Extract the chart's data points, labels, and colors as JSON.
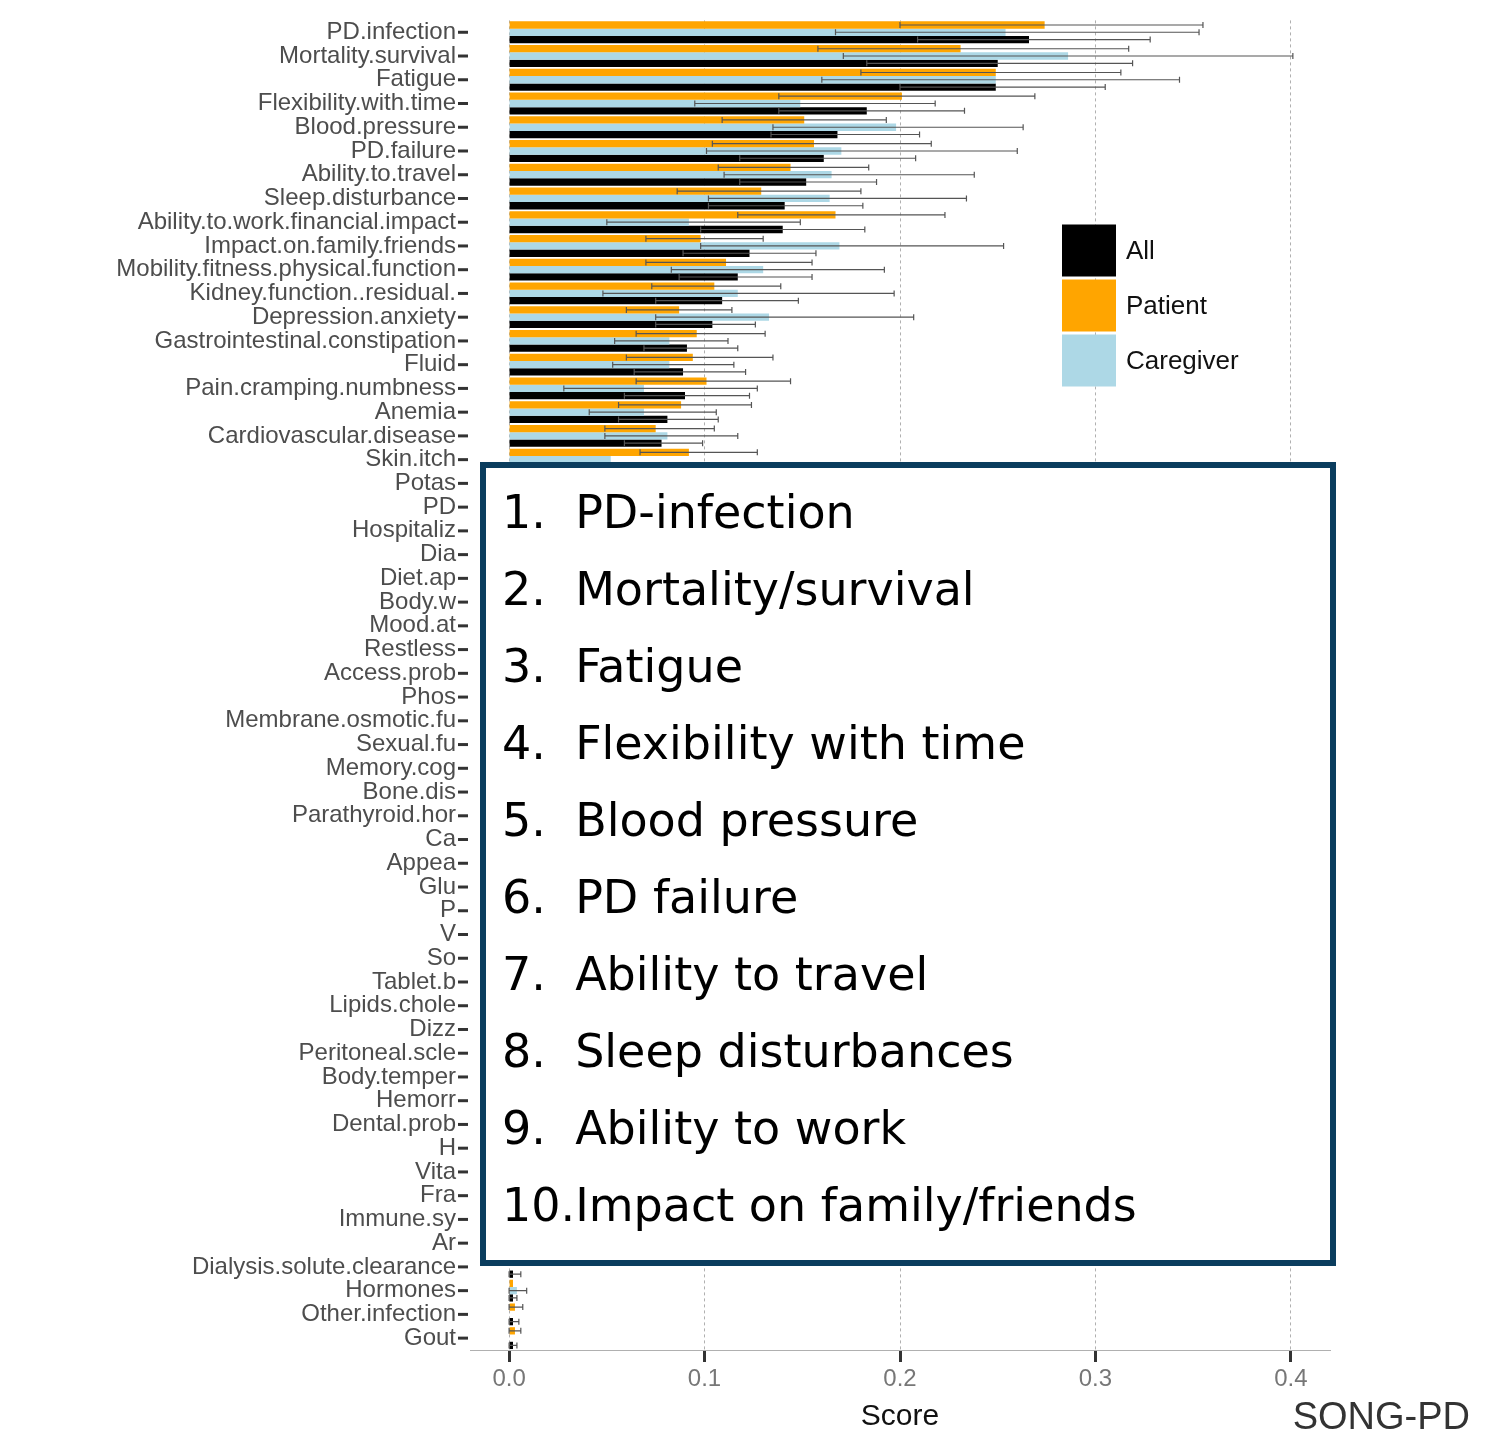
{
  "chart_data": {
    "type": "bar",
    "orientation": "horizontal",
    "xlabel": "Score",
    "categories": [
      "PD.infection",
      "Mortality.survival",
      "Fatigue",
      "Flexibility.with.time",
      "Blood.pressure",
      "PD.failure",
      "Ability.to.travel",
      "Sleep.disturbance",
      "Ability.to.work.financial.impact",
      "Impact.on.family.friends",
      "Mobility.fitness.physical.function",
      "Kidney.function..residual.",
      "Depression.anxiety",
      "Gastrointestinal.constipation",
      "Fluid",
      "Pain.cramping.numbness",
      "Anemia",
      "Cardiovascular.disease",
      "Skin.itch",
      "Potas",
      "PD",
      "Hospitaliz",
      "Dia",
      "Diet.ap",
      "Body.w",
      "Mood.at",
      "Restless",
      "Access.prob",
      "Phos",
      "Membrane.osmotic.fu",
      "Sexual.fu",
      "Memory.cog",
      "Bone.dis",
      "Parathyroid.hor",
      "Ca",
      "Appea",
      "Glu",
      "P",
      "V",
      "So",
      "Tablet.b",
      "Lipids.chole",
      "Dizz",
      "Peritoneal.scle",
      "Body.temper",
      "Hemorr",
      "Dental.prob",
      "H",
      "Vita",
      "Fra",
      "Immune.sy",
      "Ar",
      "Dialysis.solute.clearance",
      "Hormones",
      "Other.infection",
      "Gout"
    ],
    "series": [
      {
        "name": "Patient",
        "color": "#ffa500",
        "values": [
          0.274,
          0.231,
          0.249,
          0.201,
          0.151,
          0.156,
          0.144,
          0.129,
          0.167,
          0.098,
          0.111,
          0.105,
          0.087,
          0.096,
          0.094,
          0.101,
          0.088,
          0.075,
          0.092,
          null,
          null,
          null,
          null,
          null,
          null,
          null,
          null,
          null,
          null,
          null,
          null,
          null,
          null,
          null,
          null,
          null,
          null,
          null,
          null,
          null,
          null,
          null,
          null,
          null,
          null,
          null,
          null,
          null,
          null,
          null,
          null,
          null,
          null,
          0.002,
          0.003,
          0.003
        ],
        "errors": [
          [
            0.2,
            0.355
          ],
          [
            0.158,
            0.317
          ],
          [
            0.18,
            0.313
          ],
          [
            0.138,
            0.269
          ],
          [
            0.109,
            0.193
          ],
          [
            0.104,
            0.216
          ],
          [
            0.107,
            0.184
          ],
          [
            0.086,
            0.18
          ],
          [
            0.117,
            0.223
          ],
          [
            0.07,
            0.13
          ],
          [
            0.07,
            0.155
          ],
          [
            0.073,
            0.139
          ],
          [
            0.06,
            0.114
          ],
          [
            0.065,
            0.131
          ],
          [
            0.06,
            0.135
          ],
          [
            0.065,
            0.144
          ],
          [
            0.056,
            0.124
          ],
          [
            0.049,
            0.105
          ],
          [
            0.067,
            0.127
          ],
          null,
          null,
          null,
          null,
          null,
          null,
          null,
          null,
          null,
          null,
          null,
          null,
          null,
          null,
          null,
          null,
          null,
          null,
          null,
          null,
          null,
          null,
          null,
          null,
          null,
          null,
          null,
          null,
          null,
          null,
          null,
          null,
          null,
          null,
          null,
          [
            0,
            0.007
          ],
          [
            0,
            0.006
          ]
        ]
      },
      {
        "name": "Caregiver",
        "color": "#add8e6",
        "values": [
          0.254,
          0.286,
          0.249,
          0.149,
          0.198,
          0.17,
          0.165,
          0.164,
          0.092,
          0.169,
          0.13,
          0.117,
          0.133,
          0.082,
          0.082,
          0.069,
          0.069,
          0.081,
          0.052,
          null,
          null,
          null,
          null,
          null,
          null,
          null,
          null,
          null,
          null,
          null,
          null,
          null,
          null,
          null,
          null,
          null,
          null,
          null,
          null,
          null,
          null,
          null,
          null,
          null,
          null,
          null,
          null,
          null,
          null,
          null,
          null,
          null,
          null,
          0.004,
          null,
          null
        ],
        "errors": [
          [
            0.167,
            0.353
          ],
          [
            0.171,
            0.401
          ],
          [
            0.16,
            0.343
          ],
          [
            0.095,
            0.218
          ],
          [
            0.135,
            0.263
          ],
          [
            0.101,
            0.26
          ],
          [
            0.11,
            0.238
          ],
          [
            0.102,
            0.234
          ],
          [
            0.05,
            0.149
          ],
          [
            0.098,
            0.253
          ],
          [
            0.083,
            0.192
          ],
          [
            0.048,
            0.197
          ],
          [
            0.075,
            0.207
          ],
          [
            0.054,
            0.112
          ],
          [
            0.053,
            0.115
          ],
          [
            0.028,
            0.127
          ],
          [
            0.041,
            0.106
          ],
          [
            0.049,
            0.117
          ],
          null,
          null,
          null,
          null,
          null,
          null,
          null,
          null,
          null,
          null,
          null,
          null,
          null,
          null,
          null,
          null,
          null,
          null,
          null,
          null,
          null,
          null,
          null,
          null,
          null,
          null,
          null,
          null,
          null,
          null,
          null,
          null,
          null,
          null,
          null,
          [
            0,
            0.009
          ],
          null,
          null
        ]
      },
      {
        "name": "All",
        "color": "#000000",
        "values": [
          0.266,
          0.25,
          0.249,
          0.183,
          0.168,
          0.161,
          0.152,
          0.141,
          0.14,
          0.123,
          0.117,
          0.109,
          0.104,
          0.091,
          0.089,
          0.09,
          0.081,
          0.078,
          null,
          null,
          null,
          null,
          null,
          null,
          null,
          null,
          null,
          null,
          null,
          null,
          null,
          null,
          null,
          null,
          null,
          null,
          null,
          null,
          null,
          null,
          null,
          null,
          null,
          null,
          null,
          null,
          null,
          null,
          null,
          null,
          null,
          null,
          0.002,
          0.002,
          0.002,
          0.002
        ],
        "errors": [
          [
            0.209,
            0.328
          ],
          [
            0.183,
            0.319
          ],
          [
            0.2,
            0.305
          ],
          [
            0.138,
            0.233
          ],
          [
            0.134,
            0.21
          ],
          [
            0.118,
            0.208
          ],
          [
            0.118,
            0.188
          ],
          [
            0.102,
            0.181
          ],
          [
            0.098,
            0.182
          ],
          [
            0.089,
            0.157
          ],
          [
            0.087,
            0.155
          ],
          [
            0.075,
            0.148
          ],
          [
            0.075,
            0.126
          ],
          [
            0.069,
            0.117
          ],
          [
            0.064,
            0.121
          ],
          [
            0.059,
            0.123
          ],
          [
            0.056,
            0.107
          ],
          [
            0.059,
            0.099
          ],
          null,
          null,
          null,
          null,
          null,
          null,
          null,
          null,
          null,
          null,
          null,
          null,
          null,
          null,
          null,
          null,
          null,
          null,
          null,
          null,
          null,
          null,
          null,
          null,
          null,
          null,
          null,
          null,
          null,
          null,
          null,
          null,
          null,
          null,
          [
            0,
            0.006
          ],
          [
            0,
            0.004
          ],
          [
            0,
            0.005
          ],
          [
            0,
            0.004
          ]
        ]
      }
    ],
    "xlim": [
      -0.02,
      0.42
    ],
    "xticks": [
      {
        "value": 0,
        "label": "0.0"
      },
      0.1,
      0.2,
      0.3,
      0.4
    ],
    "grid": "x",
    "legend": "right",
    "annotations": [
      "1.  PD-infection",
      "2.  Mortality/survival",
      "3.  Fatigue",
      "4.  Flexibility with time",
      "5.  Blood pressure",
      "6.  PD failure",
      "7.  Ability to travel",
      "8.  Sleep disturbances",
      "9.  Ability to work",
      "10.Impact on family/friends",
      "SONG-PD"
    ]
  }
}
